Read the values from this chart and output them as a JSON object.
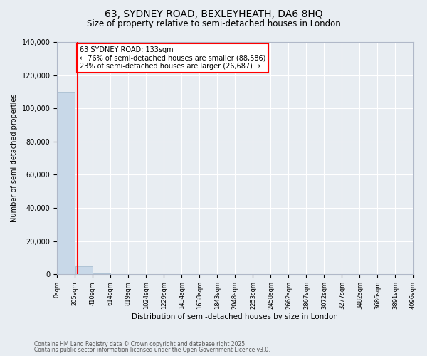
{
  "title_line1": "63, SYDNEY ROAD, BEXLEYHEATH, DA6 8HQ",
  "title_line2": "Size of property relative to semi-detached houses in London",
  "xlabel": "Distribution of semi-detached houses by size in London",
  "ylabel": "Number of semi-detached properties",
  "annotation_title": "63 SYDNEY ROAD: 133sqm",
  "annotation_line2": "← 76% of semi-detached houses are smaller (88,586)",
  "annotation_line3": "23% of semi-detached houses are larger (26,687) →",
  "footer_line1": "Contains HM Land Registry data © Crown copyright and database right 2025.",
  "footer_line2": "Contains public sector information licensed under the Open Government Licence v3.0.",
  "property_size_bin": 0.5,
  "bar_color": "#c8d8e8",
  "bar_edge_color": "#a0b8cc",
  "vline_color": "red",
  "bg_color": "#e8edf2",
  "grid_color": "white",
  "annotation_box_color": "white",
  "annotation_box_edge": "red",
  "n_bins": 20,
  "bin_labels": [
    "0sqm",
    "205sqm",
    "410sqm",
    "614sqm",
    "819sqm",
    "1024sqm",
    "1229sqm",
    "1434sqm",
    "1638sqm",
    "1843sqm",
    "2048sqm",
    "2253sqm",
    "2458sqm",
    "2662sqm",
    "2867sqm",
    "3072sqm",
    "3277sqm",
    "3482sqm",
    "3686sqm",
    "3891sqm",
    "4096sqm"
  ],
  "bar_heights": [
    110000,
    5000,
    700,
    200,
    80,
    40,
    20,
    12,
    8,
    5,
    4,
    3,
    2,
    2,
    2,
    1,
    1,
    1,
    1,
    1
  ],
  "ylim": [
    0,
    140000
  ],
  "yticks": [
    0,
    20000,
    40000,
    60000,
    80000,
    100000,
    120000,
    140000
  ],
  "vline_x": 0.65
}
